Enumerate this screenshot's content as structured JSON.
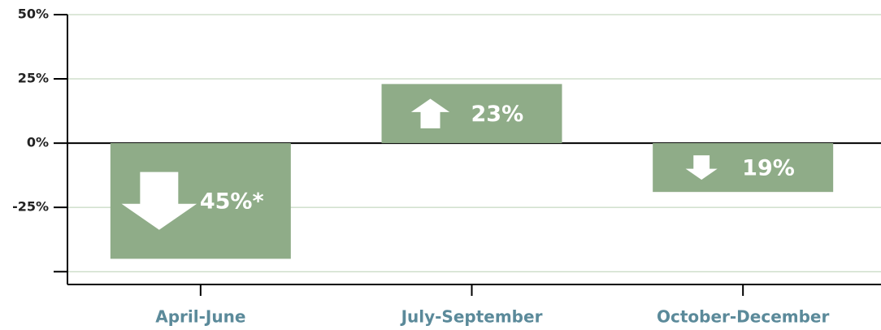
{
  "chart_data": {
    "type": "bar",
    "categories": [
      "April-June",
      "July-September",
      "October-December"
    ],
    "values": [
      -45,
      23,
      -19
    ],
    "value_labels": [
      "45%*",
      "23%",
      "19%"
    ],
    "color": "#8fac88",
    "ylim": [
      -55,
      50
    ],
    "yticks": [
      {
        "value": 50,
        "label": "50%"
      },
      {
        "value": 25,
        "label": "25%"
      },
      {
        "value": 0,
        "label": "0%"
      },
      {
        "value": -25,
        "label": "-25%"
      },
      {
        "value": -50,
        "label": null
      }
    ],
    "grid": true
  }
}
